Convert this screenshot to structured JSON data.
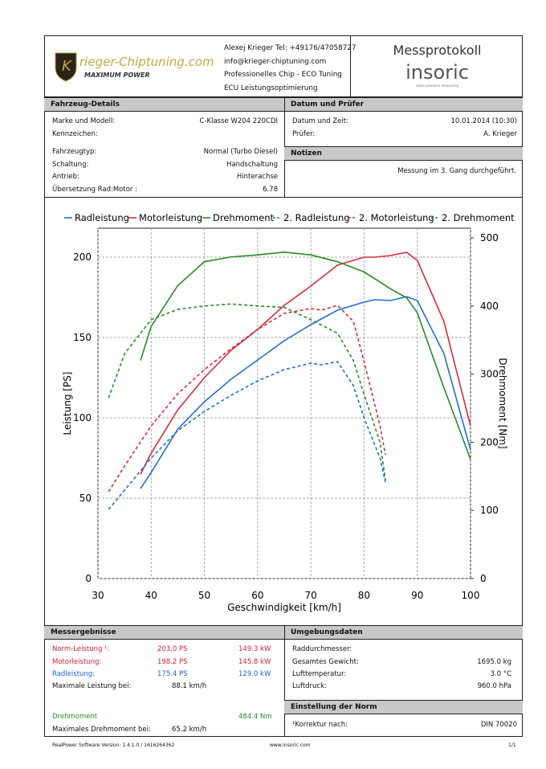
{
  "header": {
    "logo_text": "Krieger-Chiptuning.com",
    "logo_sub": "MAXIMUM POWER",
    "contact": [
      "Alexej Krieger Tel: +49176/47058727",
      "info@krieger-chiptuning.com",
      "Professionelles Chip - ECO Tuning",
      "ECU Leistungsoptimierung"
    ],
    "title": "Messprotokoll",
    "brand": "insoric",
    "brand_tag": "swiss precision measuring"
  },
  "vehicle": {
    "title": "Fahrzeug-Details",
    "rows": [
      [
        "Marke und Modell:",
        "C-Klasse W204 220CDI"
      ],
      [
        "Kennzeichen:",
        ""
      ],
      [
        "Fahrzeugtyp:",
        "Normal (Turbo Diesel)"
      ],
      [
        "Schaltung:",
        "Handschaltung"
      ],
      [
        "Antrieb:",
        "Hinterachse"
      ],
      [
        "Übersetzung Rad:Motor :",
        "6.78"
      ]
    ]
  },
  "date": {
    "title": "Datum und Prüfer",
    "rows": [
      [
        "Datum und Zeit:",
        "10.01.2014 (10:30)"
      ],
      [
        "Prüfer:",
        "A. Krieger"
      ]
    ]
  },
  "notes": {
    "title": "Notizen",
    "text": "Messung im 3. Gang durchgeführt."
  },
  "results": {
    "title": "Messergebnisse",
    "norm": [
      "Norm-Leistung ¹:",
      "203.0 PS",
      "149.3 kW"
    ],
    "motor": [
      "Motorleistung:",
      "198.2 PS",
      "145.8 kW"
    ],
    "rad": [
      "Radleistung:",
      "175.4 PS",
      "129.0 kW"
    ],
    "maxp": [
      "Maximale Leistung bei:",
      "88.1 km/h"
    ],
    "torque": [
      "Drehmoment",
      "484.4 Nm"
    ],
    "maxt": [
      "Maximales Drehmoment bei:",
      "65.2 km/h"
    ]
  },
  "env": {
    "title": "Umgebungsdaten",
    "rows": [
      [
        "Raddurchmesser:",
        ""
      ],
      [
        "Gesamtes Gewicht:",
        "1695.0 kg"
      ],
      [
        "Lufttemperatur:",
        "3.0 °C"
      ],
      [
        "Luftdruck:",
        "960.0 hPa"
      ]
    ]
  },
  "norm": {
    "title": "Einstellung der Norm",
    "label": "¹Korrektur nach:",
    "value": "DIN 70020"
  },
  "footer": {
    "version": "RealPower Software Version: 1.4.1.0 / 1616264362",
    "url": "www.insoric.com",
    "page": "1/1"
  },
  "chart_data": {
    "type": "line",
    "xlabel": "Geschwindigkeit [km/h]",
    "ylabel": "Leistung [PS]",
    "y2label": "Drehmoment [Nm]",
    "xlim": [
      30,
      100
    ],
    "ylim": [
      0,
      215
    ],
    "y2lim": [
      0,
      530
    ],
    "xticks": [
      30,
      40,
      50,
      60,
      70,
      80,
      90,
      100
    ],
    "yticks": [
      0,
      50,
      100,
      150,
      200
    ],
    "y2ticks": [
      0,
      100,
      200,
      300,
      400,
      500
    ],
    "legend": "top",
    "series": [
      {
        "name": "Radleistung",
        "axis": "left",
        "color": "#1f6fd8",
        "dash": false,
        "x": [
          38,
          40,
          45,
          50,
          55,
          60,
          65,
          70,
          75,
          80,
          82,
          85,
          88,
          90,
          95,
          100
        ],
        "y": [
          56,
          66,
          93,
          110,
          124,
          136,
          148,
          158,
          167,
          172,
          173.5,
          173,
          175.4,
          173,
          140,
          80
        ]
      },
      {
        "name": "Motorleistung",
        "axis": "left",
        "color": "#d92b3a",
        "dash": false,
        "x": [
          38,
          40,
          45,
          50,
          55,
          60,
          65,
          70,
          75,
          80,
          82,
          85,
          88,
          90,
          95,
          100
        ],
        "y": [
          65,
          78,
          105,
          125,
          142,
          155,
          170,
          182,
          195,
          200,
          200,
          201,
          203,
          198,
          160,
          95
        ]
      },
      {
        "name": "Drehmoment",
        "axis": "right",
        "color": "#2a8a2a",
        "dash": false,
        "x": [
          38,
          40,
          45,
          50,
          55,
          60,
          65,
          70,
          75,
          80,
          85,
          88,
          90,
          95,
          100
        ],
        "y": [
          320,
          370,
          430,
          465,
          472,
          475,
          479,
          475,
          465,
          450,
          425,
          412,
          390,
          280,
          175
        ]
      },
      {
        "name": "2. Radleistung",
        "axis": "left",
        "color": "#1f6fd8",
        "dash": true,
        "x": [
          32,
          35,
          40,
          45,
          50,
          55,
          60,
          65,
          70,
          72,
          75,
          78,
          80,
          83,
          84
        ],
        "y": [
          43,
          55,
          75,
          92,
          104,
          114,
          123,
          130,
          134,
          133,
          135,
          120,
          100,
          75,
          60
        ]
      },
      {
        "name": "2. Motorleistung",
        "axis": "left",
        "color": "#d92b3a",
        "dash": true,
        "x": [
          32,
          35,
          40,
          45,
          50,
          55,
          60,
          65,
          70,
          72,
          75,
          78,
          80,
          83,
          84
        ],
        "y": [
          54,
          70,
          95,
          115,
          130,
          143,
          155,
          165,
          168,
          167,
          170,
          160,
          135,
          95,
          77
        ]
      },
      {
        "name": "2. Drehmoment",
        "axis": "right",
        "color": "#2a8a2a",
        "dash": true,
        "x": [
          32,
          35,
          40,
          45,
          50,
          55,
          60,
          65,
          70,
          75,
          78,
          80,
          83,
          84
        ],
        "y": [
          265,
          330,
          380,
          395,
          400,
          403,
          400,
          398,
          380,
          360,
          320,
          270,
          200,
          145
        ]
      }
    ]
  }
}
